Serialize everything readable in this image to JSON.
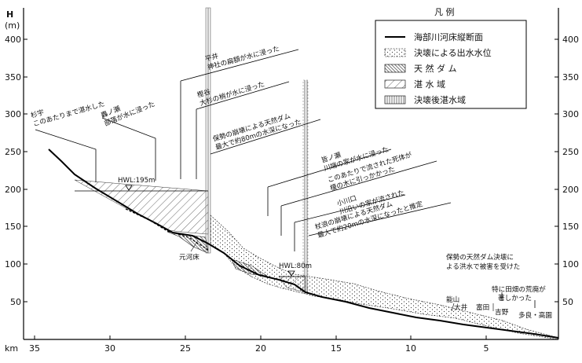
{
  "axis": {
    "y_title": "H",
    "y_unit": "(m)",
    "x_unit": "km",
    "y_ticks": [
      "400",
      "350",
      "300",
      "250",
      "200",
      "150",
      "100",
      "50"
    ],
    "x_ticks": [
      "35",
      "30",
      "25",
      "20",
      "15",
      "10",
      "5"
    ]
  },
  "legend": {
    "title": "凡 例",
    "items": [
      {
        "label": "海部川河床縦断面",
        "pattern": "solid-line"
      },
      {
        "label": "決壊による出水水位",
        "pattern": "dotted-line"
      },
      {
        "label": "天 然 ダ ム",
        "pattern": "dense-hatch"
      },
      {
        "label": "湛 水 域",
        "pattern": "diagonal-hatch"
      },
      {
        "label": "決壊後湛水域",
        "pattern": "vertical-hatch"
      }
    ]
  },
  "annotations": {
    "sugiu": [
      "杉宇",
      "このあたりまで湛水した"
    ],
    "hatase": [
      "轟ノ瀬",
      "部落が水に浸った"
    ],
    "hirai": [
      "平井",
      "神社の扁額が水に浸った"
    ],
    "kashiwadani": [
      "樫谷",
      "大杉の梢が水に浸った"
    ],
    "hoseidam": [
      "保勢の崩壊による天然ダム",
      "最大で約80mの水深になった"
    ],
    "kainose": [
      "皆ノ瀬",
      "川端の家が水に浸った"
    ],
    "deadtree": [
      "このあたりで流された死体が",
      "榎の木に引っかかった"
    ],
    "ogawaguchi": [
      "小川口",
      "川沿いの家が流された"
    ],
    "sugihara": [
      "杖浪の崩壊による天然ダム",
      "最大で約20mの水深になったと推定"
    ],
    "hoseiflood": [
      "保勢の天然ダム決壊に",
      "よる洪水で被害を受けた"
    ],
    "farmland": [
      "特に田畑の荒廃が",
      "著しかった"
    ]
  },
  "labels": {
    "hwl195": "HWL:195m",
    "hwl80": "HWL:80m",
    "original_bed": "元河床",
    "noyama": "能山",
    "oi": "大井",
    "tomita": "富田",
    "yoshino": "吉野",
    "tara_takazono": "多良・高園"
  },
  "profile_km_m": [
    [
      34.2,
      250
    ],
    [
      33,
      232
    ],
    [
      31.5,
      208
    ],
    [
      29.5,
      190
    ],
    [
      27,
      165
    ],
    [
      25.5,
      145
    ],
    [
      23.5,
      138
    ],
    [
      22,
      112
    ],
    [
      20.5,
      90
    ],
    [
      19,
      78
    ],
    [
      17.5,
      68
    ],
    [
      17,
      62
    ],
    [
      15,
      54
    ],
    [
      13,
      45
    ],
    [
      11,
      35
    ],
    [
      9,
      28
    ],
    [
      7,
      22
    ],
    [
      5,
      17
    ],
    [
      3,
      11
    ],
    [
      1,
      5
    ],
    [
      0,
      0
    ]
  ]
}
